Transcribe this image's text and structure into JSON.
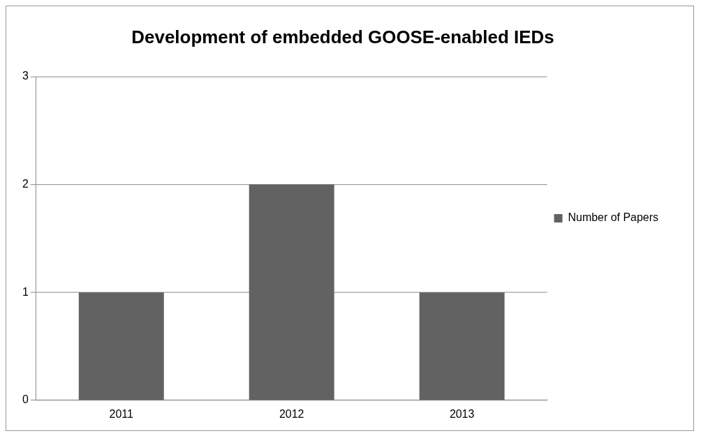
{
  "chart_data": {
    "type": "bar",
    "title": "Development of embedded GOOSE-enabled IEDs",
    "categories": [
      "2011",
      "2012",
      "2013"
    ],
    "series": [
      {
        "name": "Number of Papers",
        "color": "#626262",
        "values": [
          1,
          2,
          1
        ]
      }
    ],
    "ylim": [
      0,
      3
    ],
    "yticks": [
      0,
      1,
      2,
      3
    ],
    "grid": "y",
    "legend": "right"
  }
}
